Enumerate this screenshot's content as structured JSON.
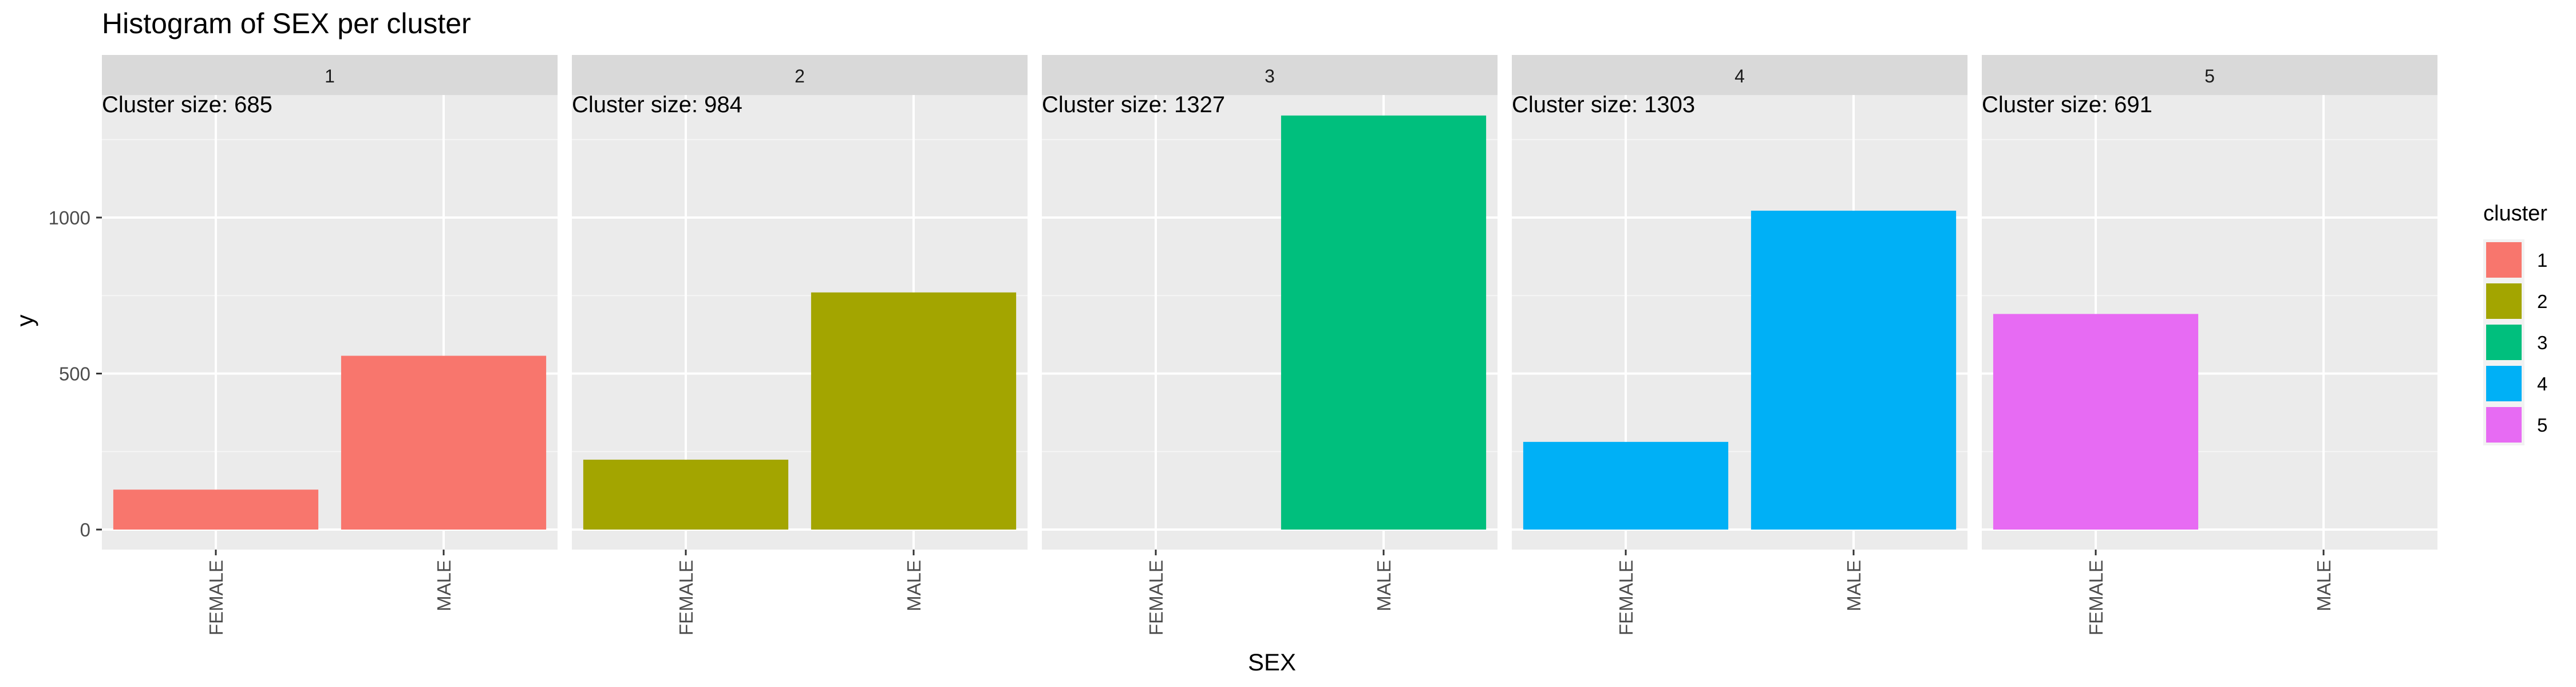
{
  "chart_data": {
    "type": "bar",
    "title": "Histogram of SEX per cluster",
    "xlabel": "SEX",
    "ylabel": "y",
    "ylim": [
      0,
      1400
    ],
    "yticks": [
      0,
      500,
      1000
    ],
    "yticks_labels": [
      "0",
      "500",
      "1000"
    ],
    "categories": [
      "FEMALE",
      "MALE"
    ],
    "grid": true,
    "facets": [
      {
        "strip": "1",
        "annotation": "Cluster size: 685",
        "values": [
          128,
          557
        ]
      },
      {
        "strip": "2",
        "annotation": "Cluster size: 984",
        "values": [
          224,
          760
        ]
      },
      {
        "strip": "3",
        "annotation": "Cluster size: 1327",
        "values": [
          0,
          1327
        ]
      },
      {
        "strip": "4",
        "annotation": "Cluster size: 1303",
        "values": [
          281,
          1022
        ]
      },
      {
        "strip": "5",
        "annotation": "Cluster size: 691",
        "values": [
          691,
          0
        ]
      }
    ],
    "legend": {
      "title": "cluster",
      "placement": "right",
      "items": [
        "1",
        "2",
        "3",
        "4",
        "5"
      ]
    },
    "colors": [
      "#F8766D",
      "#A3A500",
      "#00BF7D",
      "#00B0F6",
      "#E76BF3"
    ],
    "panel_background": "#EBEBEB",
    "strip_background": "#D9D9D9"
  }
}
